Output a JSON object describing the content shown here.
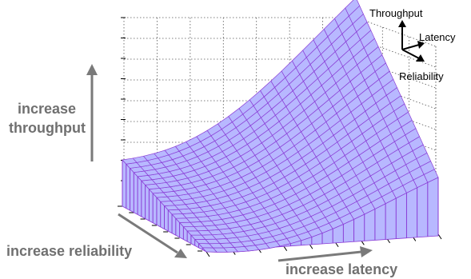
{
  "labels": {
    "throughput": "increase\nthroughput",
    "throughput_line1": "increase",
    "throughput_line2": "throughput",
    "reliability": "increase reliability",
    "latency": "increase latency"
  },
  "legend": {
    "throughput": "Throughput",
    "latency": "Latency",
    "reliability": "Reliability"
  },
  "colors": {
    "surface_fill": "#b8b8ff",
    "surface_line": "#8a3dd6",
    "arrow_gray": "#7a7a7a",
    "grid": "#555555"
  }
}
